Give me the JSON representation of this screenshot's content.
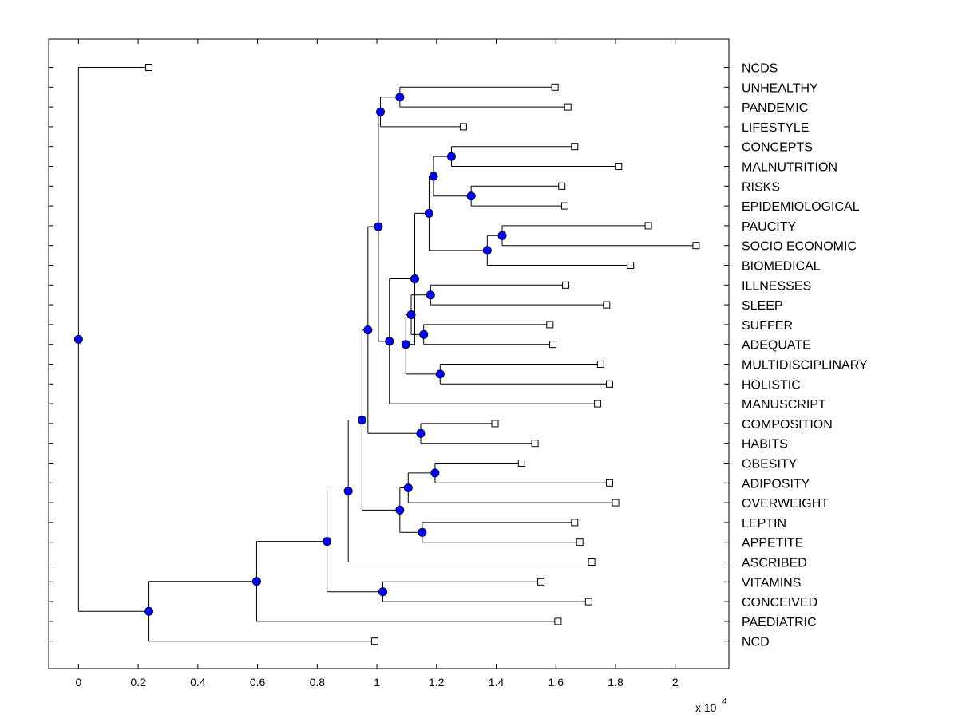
{
  "chart_data": {
    "type": "dendrogram",
    "x_scale_label": "x 10",
    "x_scale_exponent": "4",
    "xlim": [
      -0.1,
      2.18
    ],
    "x_ticks": [
      {
        "value": 0,
        "label": "0"
      },
      {
        "value": 0.2,
        "label": "0.2"
      },
      {
        "value": 0.4,
        "label": "0.4"
      },
      {
        "value": 0.6,
        "label": "0.6"
      },
      {
        "value": 0.8,
        "label": "0.8"
      },
      {
        "value": 1.0,
        "label": "1"
      },
      {
        "value": 1.2,
        "label": "1.2"
      },
      {
        "value": 1.4,
        "label": "1.4"
      },
      {
        "value": 1.6,
        "label": "1.6"
      },
      {
        "value": 1.8,
        "label": "1.8"
      },
      {
        "value": 2.0,
        "label": "2"
      }
    ],
    "leaves": [
      {
        "label": "NCDS",
        "x": 0.236
      },
      {
        "label": "UNHEALTHY",
        "x": 1.597
      },
      {
        "label": "PANDEMIC",
        "x": 1.64
      },
      {
        "label": "LIFESTYLE",
        "x": 1.29
      },
      {
        "label": "CONCEPTS",
        "x": 1.663
      },
      {
        "label": "MALNUTRITION",
        "x": 1.81
      },
      {
        "label": "RISKS",
        "x": 1.62
      },
      {
        "label": "EPIDEMIOLOGICAL",
        "x": 1.63
      },
      {
        "label": "PAUCITY",
        "x": 1.91
      },
      {
        "label": "SOCIO ECONOMIC",
        "x": 2.07
      },
      {
        "label": "BIOMEDICAL",
        "x": 1.85
      },
      {
        "label": "ILLNESSES",
        "x": 1.633
      },
      {
        "label": "SLEEP",
        "x": 1.77
      },
      {
        "label": "SUFFER",
        "x": 1.58
      },
      {
        "label": "ADEQUATE",
        "x": 1.59
      },
      {
        "label": "MULTIDISCIPLINARY",
        "x": 1.75
      },
      {
        "label": "HOLISTIC",
        "x": 1.78
      },
      {
        "label": "MANUSCRIPT",
        "x": 1.74
      },
      {
        "label": "COMPOSITION",
        "x": 1.396
      },
      {
        "label": "HABITS",
        "x": 1.53
      },
      {
        "label": "OBESITY",
        "x": 1.485
      },
      {
        "label": "ADIPOSITY",
        "x": 1.78
      },
      {
        "label": "OVERWEIGHT",
        "x": 1.8
      },
      {
        "label": "LEPTIN",
        "x": 1.663
      },
      {
        "label": "APPETITE",
        "x": 1.68
      },
      {
        "label": "ASCRIBED",
        "x": 1.72
      },
      {
        "label": "VITAMINS",
        "x": 1.55
      },
      {
        "label": "CONCEIVED",
        "x": 1.71
      },
      {
        "label": "PAEDIATRIC",
        "x": 1.607
      },
      {
        "label": "NCD",
        "x": 0.993
      }
    ],
    "merges": [
      {
        "id": "m1",
        "x": 1.077,
        "children": [
          1,
          2
        ]
      },
      {
        "id": "m2",
        "x": 1.012,
        "children": [
          "m1",
          3
        ]
      },
      {
        "id": "m3",
        "x": 1.316,
        "children": [
          6,
          7
        ]
      },
      {
        "id": "m4",
        "x": 1.25,
        "children": [
          4,
          5
        ]
      },
      {
        "id": "m5",
        "x": 1.19,
        "children": [
          "m4",
          "m3"
        ]
      },
      {
        "id": "m6",
        "x": 1.42,
        "children": [
          8,
          9
        ]
      },
      {
        "id": "m7",
        "x": 1.37,
        "children": [
          "m6",
          10
        ]
      },
      {
        "id": "m8",
        "x": 1.175,
        "children": [
          "m5",
          "m7"
        ]
      },
      {
        "id": "m9",
        "x": 1.18,
        "children": [
          11,
          12
        ]
      },
      {
        "id": "m10",
        "x": 1.157,
        "children": [
          13,
          14
        ]
      },
      {
        "id": "m11",
        "x": 1.212,
        "children": [
          15,
          16
        ]
      },
      {
        "id": "m12",
        "x": 1.115,
        "children": [
          "m9",
          "m10"
        ]
      },
      {
        "id": "m13",
        "x": 1.097,
        "children": [
          "m12",
          "m11"
        ]
      },
      {
        "id": "m14",
        "x": 1.127,
        "children": [
          "m8",
          "m13"
        ]
      },
      {
        "id": "m15",
        "x": 1.042,
        "children": [
          "m14",
          17
        ]
      },
      {
        "id": "m16",
        "x": 1.005,
        "children": [
          "m2",
          "m15"
        ]
      },
      {
        "id": "m17",
        "x": 1.147,
        "children": [
          18,
          19
        ]
      },
      {
        "id": "m18",
        "x": 0.97,
        "children": [
          "m16",
          "m17"
        ]
      },
      {
        "id": "m19",
        "x": 1.195,
        "children": [
          20,
          21
        ]
      },
      {
        "id": "m20",
        "x": 1.105,
        "children": [
          "m19",
          22
        ]
      },
      {
        "id": "m21",
        "x": 1.152,
        "children": [
          23,
          24
        ]
      },
      {
        "id": "m22",
        "x": 1.077,
        "children": [
          "m20",
          "m21"
        ]
      },
      {
        "id": "m23",
        "x": 0.95,
        "children": [
          "m18",
          "m22"
        ]
      },
      {
        "id": "m24",
        "x": 0.904,
        "children": [
          "m23",
          25
        ]
      },
      {
        "id": "m25",
        "x": 1.02,
        "children": [
          26,
          27
        ]
      },
      {
        "id": "m26",
        "x": 0.833,
        "children": [
          "m24",
          "m25"
        ]
      },
      {
        "id": "m27",
        "x": 0.597,
        "children": [
          "m26",
          28
        ]
      },
      {
        "id": "m28",
        "x": 0.236,
        "children": [
          "m27",
          29
        ]
      },
      {
        "id": "root",
        "x": 0.0,
        "children": [
          0,
          "m28"
        ]
      }
    ]
  },
  "colors": {
    "node_fill": "#0000ff",
    "line": "#000000",
    "leaf_fill": "#ffffff"
  }
}
